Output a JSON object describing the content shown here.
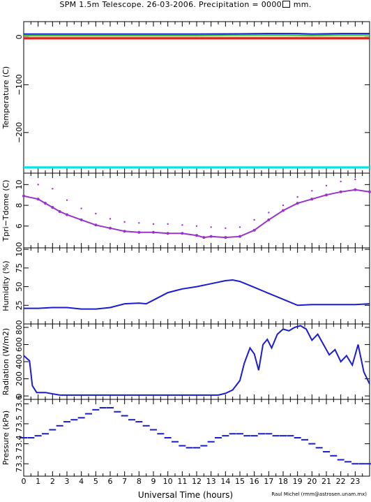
{
  "title": "SPM 1.5m Telescope. 26-03-2006. Precipitation = 0000",
  "title_suffix": " mm.",
  "xlabel": "Universal Time (hours)",
  "credit": "Raul Michel (rmm@astrosen.unam.mx)",
  "x_ticks": [
    "0",
    "1",
    "2",
    "3",
    "4",
    "5",
    "6",
    "7",
    "8",
    "9",
    "10",
    "11",
    "12",
    "13",
    "14",
    "15",
    "16",
    "17",
    "18",
    "19",
    "20",
    "21",
    "22",
    "23"
  ],
  "colors": {
    "blue": "#1b1bd0",
    "purple": "#9933cc",
    "cyan": "#00e5e5",
    "green": "#2fc42f",
    "red": "#e02020",
    "orange": "#f08020",
    "black": "#000000"
  },
  "chart_data": [
    {
      "type": "line",
      "ylabel": "Temperature (C)",
      "y_ticks": [
        "0",
        "−100",
        "−200"
      ],
      "y_tick_values": [
        0,
        -100,
        -200
      ],
      "ylim": [
        -285,
        32
      ],
      "xlim": [
        0,
        24
      ],
      "series": [
        {
          "color": "blue",
          "x": [
            0,
            6,
            12,
            15,
            17,
            19,
            20,
            22,
            24
          ],
          "y": [
            6,
            6,
            6,
            6.5,
            7,
            7,
            6,
            7,
            7
          ]
        },
        {
          "color": "green",
          "x": [
            0,
            6,
            12,
            15,
            18,
            20,
            22,
            24
          ],
          "y": [
            3,
            3,
            3,
            4,
            4,
            3,
            4,
            4
          ]
        },
        {
          "color": "orange",
          "x": [
            0,
            24
          ],
          "y": [
            -1,
            -1
          ]
        },
        {
          "color": "red",
          "x": [
            0,
            24
          ],
          "y": [
            -3,
            -3
          ]
        },
        {
          "color": "cyan",
          "x": [
            0,
            24
          ],
          "y": [
            -273,
            -273
          ]
        }
      ]
    },
    {
      "type": "scatter",
      "ylabel": "Tpri−Tdome (C)",
      "y_ticks": [
        "6",
        "8",
        "10"
      ],
      "y_tick_values": [
        6,
        8,
        10
      ],
      "ylim": [
        3.9,
        11.1
      ],
      "xlim": [
        0,
        24
      ],
      "series": [
        {
          "color": "purple",
          "x": [
            0,
            1,
            1.5,
            2,
            2.5,
            3,
            4,
            5,
            6,
            7,
            8,
            9,
            10,
            11,
            12,
            12.5,
            13,
            14,
            15,
            16,
            17,
            18,
            19,
            20,
            21,
            22,
            23,
            24
          ],
          "y": [
            8.9,
            8.6,
            8.2,
            7.8,
            7.4,
            7.1,
            6.6,
            6.1,
            5.8,
            5.5,
            5.4,
            5.4,
            5.3,
            5.3,
            5.1,
            4.9,
            5.0,
            4.9,
            5.0,
            5.6,
            6.6,
            7.5,
            8.2,
            8.6,
            9.0,
            9.3,
            9.5,
            9.3
          ]
        },
        {
          "color": "purple",
          "x": [
            1,
            2,
            3,
            4,
            5,
            6,
            7,
            8,
            9,
            10,
            11,
            12,
            13,
            14,
            15,
            16,
            17,
            18,
            19,
            20,
            21,
            22,
            23
          ],
          "y": [
            10.0,
            9.6,
            8.5,
            7.7,
            7.2,
            6.7,
            6.4,
            6.3,
            6.2,
            6.2,
            6.1,
            6.0,
            5.9,
            5.8,
            5.9,
            6.6,
            7.3,
            8.0,
            8.8,
            9.4,
            9.9,
            10.3,
            10.5
          ]
        }
      ]
    },
    {
      "type": "line",
      "ylabel": "Humidity (%)",
      "y_ticks": [
        "25",
        "50",
        "75",
        "100"
      ],
      "y_tick_values": [
        25,
        50,
        75,
        100
      ],
      "ylim": [
        0,
        102
      ],
      "xlim": [
        0,
        24
      ],
      "series": [
        {
          "color": "blue",
          "x": [
            0,
            1,
            2,
            3,
            4,
            5,
            6,
            7,
            8,
            8.5,
            9,
            10,
            11,
            12,
            13,
            14,
            14.5,
            15,
            16,
            17,
            18,
            19,
            20,
            21,
            22,
            23,
            24
          ],
          "y": [
            21,
            21,
            22,
            22,
            20,
            20,
            22,
            27,
            28,
            27,
            32,
            42,
            47,
            50,
            54,
            58,
            59,
            57,
            49,
            41,
            33,
            25,
            26,
            26,
            26,
            26,
            27
          ]
        }
      ]
    },
    {
      "type": "line",
      "ylabel": "Radiation (W/m2)",
      "y_ticks": [
        "0",
        "200",
        "400",
        "600",
        "800"
      ],
      "y_tick_values": [
        0,
        200,
        400,
        600,
        800
      ],
      "ylim": [
        -40,
        840
      ],
      "xlim": [
        0,
        24
      ],
      "series": [
        {
          "color": "blue",
          "x": [
            0,
            0.4,
            0.6,
            0.9,
            1.5,
            2.5,
            6,
            10,
            13.5,
            14,
            14.5,
            15,
            15.3,
            15.7,
            16,
            16.3,
            16.6,
            16.9,
            17.2,
            17.6,
            18,
            18.4,
            18.8,
            19.2,
            19.6,
            20,
            20.4,
            20.8,
            21.2,
            21.6,
            22,
            22.4,
            22.8,
            23.2,
            23.6,
            24
          ],
          "y": [
            470,
            410,
            120,
            40,
            40,
            10,
            10,
            10,
            10,
            30,
            70,
            180,
            380,
            560,
            490,
            300,
            600,
            660,
            560,
            720,
            780,
            760,
            800,
            820,
            780,
            650,
            720,
            600,
            480,
            540,
            400,
            470,
            360,
            600,
            280,
            140
          ]
        }
      ]
    },
    {
      "type": "scatter",
      "ylabel": "Pressure (kPa)",
      "y_ticks": [
        "73.3",
        "73.4",
        "73.5",
        "73.6"
      ],
      "y_tick_values": [
        73.3,
        73.4,
        73.5,
        73.6
      ],
      "ylim": [
        73.238,
        73.622
      ],
      "xlim": [
        0,
        24
      ],
      "series": [
        {
          "color": "blue",
          "x": [
            0,
            0.5,
            1,
            1.5,
            2,
            2.5,
            3,
            3.5,
            4,
            4.5,
            5,
            5.5,
            6,
            6.5,
            7,
            7.5,
            8,
            8.5,
            9,
            9.5,
            10,
            10.5,
            11,
            11.5,
            12,
            12.5,
            13,
            13.5,
            14,
            14.5,
            15,
            15.5,
            16,
            16.5,
            17,
            17.5,
            18,
            18.5,
            19,
            19.5,
            20,
            20.5,
            21,
            21.5,
            22,
            22.5,
            23,
            23.5,
            24
          ],
          "y": [
            73.43,
            73.43,
            73.44,
            73.45,
            73.47,
            73.49,
            73.51,
            73.52,
            73.53,
            73.55,
            73.57,
            73.58,
            73.58,
            73.56,
            73.54,
            73.52,
            73.51,
            73.49,
            73.47,
            73.45,
            73.43,
            73.41,
            73.39,
            73.38,
            73.38,
            73.39,
            73.41,
            73.43,
            73.44,
            73.45,
            73.45,
            73.44,
            73.44,
            73.45,
            73.45,
            73.44,
            73.44,
            73.44,
            73.43,
            73.42,
            73.4,
            73.38,
            73.36,
            73.34,
            73.32,
            73.31,
            73.3,
            73.3,
            73.3
          ]
        }
      ]
    }
  ]
}
